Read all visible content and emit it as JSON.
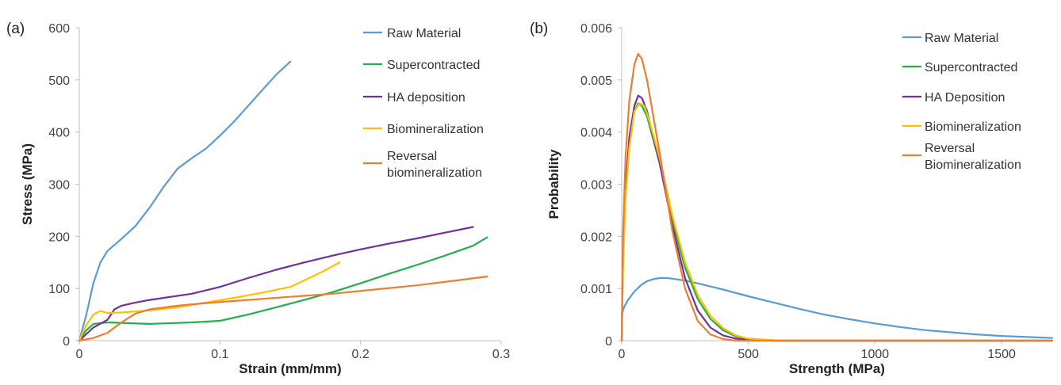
{
  "chart_data": [
    {
      "type": "line",
      "panel_label": "(a)",
      "xlabel": "Strain (mm/mm)",
      "ylabel": "Stress (MPa)",
      "xlim": [
        0,
        0.3
      ],
      "ylim": [
        0,
        600
      ],
      "xticks": [
        "0",
        "0.1",
        "0.2",
        "0.3"
      ],
      "yticks": [
        "0",
        "100",
        "200",
        "300",
        "400",
        "500",
        "600"
      ],
      "grid": false,
      "legend_position": "right",
      "series": [
        {
          "name": "Raw Material",
          "color": "#5b9bd5",
          "points": [
            [
              0,
              0
            ],
            [
              0.005,
              50
            ],
            [
              0.01,
              110
            ],
            [
              0.015,
              150
            ],
            [
              0.02,
              172
            ],
            [
              0.03,
              195
            ],
            [
              0.04,
              220
            ],
            [
              0.05,
              255
            ],
            [
              0.06,
              295
            ],
            [
              0.07,
              330
            ],
            [
              0.08,
              350
            ],
            [
              0.09,
              368
            ],
            [
              0.1,
              393
            ],
            [
              0.11,
              420
            ],
            [
              0.12,
              450
            ],
            [
              0.13,
              480
            ],
            [
              0.14,
              510
            ],
            [
              0.15,
              535
            ]
          ]
        },
        {
          "name": "Supercontracted",
          "color": "#22b04b",
          "points": [
            [
              0,
              0
            ],
            [
              0.005,
              20
            ],
            [
              0.01,
              32
            ],
            [
              0.02,
              35
            ],
            [
              0.05,
              32
            ],
            [
              0.08,
              35
            ],
            [
              0.1,
              38
            ],
            [
              0.12,
              50
            ],
            [
              0.14,
              64
            ],
            [
              0.16,
              78
            ],
            [
              0.18,
              93
            ],
            [
              0.2,
              110
            ],
            [
              0.22,
              128
            ],
            [
              0.24,
              145
            ],
            [
              0.26,
              163
            ],
            [
              0.28,
              182
            ],
            [
              0.29,
              198
            ]
          ]
        },
        {
          "name": "HA deposition",
          "color": "#7030a0",
          "points": [
            [
              0,
              0
            ],
            [
              0.01,
              25
            ],
            [
              0.02,
              40
            ],
            [
              0.025,
              60
            ],
            [
              0.03,
              67
            ],
            [
              0.04,
              73
            ],
            [
              0.05,
              78
            ],
            [
              0.08,
              90
            ],
            [
              0.1,
              103
            ],
            [
              0.12,
              120
            ],
            [
              0.14,
              136
            ],
            [
              0.16,
              150
            ],
            [
              0.18,
              163
            ],
            [
              0.2,
              175
            ],
            [
              0.22,
              186
            ],
            [
              0.24,
              196
            ],
            [
              0.26,
              207
            ],
            [
              0.28,
              218
            ]
          ]
        },
        {
          "name": "Biomineralization",
          "color": "#ffc000",
          "points": [
            [
              0,
              0
            ],
            [
              0.005,
              30
            ],
            [
              0.01,
              50
            ],
            [
              0.015,
              57
            ],
            [
              0.02,
              53
            ],
            [
              0.03,
              54
            ],
            [
              0.05,
              58
            ],
            [
              0.07,
              64
            ],
            [
              0.09,
              73
            ],
            [
              0.11,
              82
            ],
            [
              0.13,
              92
            ],
            [
              0.15,
              103
            ],
            [
              0.165,
              122
            ],
            [
              0.175,
              135
            ],
            [
              0.185,
              150
            ]
          ]
        },
        {
          "name": "Reversal biomineralization",
          "color": "#ed7d31",
          "points": [
            [
              0,
              0
            ],
            [
              0.01,
              5
            ],
            [
              0.02,
              15
            ],
            [
              0.03,
              35
            ],
            [
              0.04,
              52
            ],
            [
              0.05,
              60
            ],
            [
              0.07,
              67
            ],
            [
              0.09,
              72
            ],
            [
              0.12,
              78
            ],
            [
              0.15,
              84
            ],
            [
              0.18,
              90
            ],
            [
              0.21,
              98
            ],
            [
              0.24,
              106
            ],
            [
              0.27,
              116
            ],
            [
              0.29,
              123
            ]
          ]
        }
      ]
    },
    {
      "type": "line",
      "panel_label": "(b)",
      "xlabel": "Strength (MPa)",
      "ylabel": "Probability",
      "xlim": [
        0,
        1700
      ],
      "ylim": [
        0,
        0.006
      ],
      "xticks": [
        "0",
        "500",
        "1000",
        "1500"
      ],
      "yticks": [
        "0",
        "0.001",
        "0.002",
        "0.003",
        "0.004",
        "0.005",
        "0.006"
      ],
      "grid": false,
      "legend_position": "right",
      "series": [
        {
          "name": "Raw Material",
          "color": "#5b9bd5",
          "points": [
            [
              0,
              0.0005
            ],
            [
              10,
              0.00065
            ],
            [
              25,
              0.00078
            ],
            [
              50,
              0.00094
            ],
            [
              75,
              0.00106
            ],
            [
              100,
              0.00114
            ],
            [
              125,
              0.00118
            ],
            [
              150,
              0.0012
            ],
            [
              175,
              0.0012
            ],
            [
              200,
              0.00119
            ],
            [
              250,
              0.00115
            ],
            [
              300,
              0.0011
            ],
            [
              400,
              0.00098
            ],
            [
              500,
              0.00085
            ],
            [
              600,
              0.00073
            ],
            [
              700,
              0.00061
            ],
            [
              800,
              0.0005
            ],
            [
              900,
              0.00041
            ],
            [
              1000,
              0.00033
            ],
            [
              1100,
              0.00026
            ],
            [
              1200,
              0.0002
            ],
            [
              1300,
              0.00016
            ],
            [
              1400,
              0.00012
            ],
            [
              1500,
              9e-05
            ],
            [
              1600,
              7e-05
            ],
            [
              1700,
              5e-05
            ]
          ]
        },
        {
          "name": "Supercontracted",
          "color": "#22b04b",
          "points": [
            [
              0,
              0
            ],
            [
              5,
              0.0015
            ],
            [
              15,
              0.0028
            ],
            [
              30,
              0.0038
            ],
            [
              50,
              0.0044
            ],
            [
              65,
              0.00455
            ],
            [
              80,
              0.0045
            ],
            [
              100,
              0.0043
            ],
            [
              150,
              0.0034
            ],
            [
              200,
              0.0023
            ],
            [
              250,
              0.0014
            ],
            [
              300,
              0.0008
            ],
            [
              350,
              0.00042
            ],
            [
              400,
              0.0002
            ],
            [
              450,
              8e-05
            ],
            [
              500,
              3e-05
            ],
            [
              600,
              0
            ],
            [
              1700,
              0
            ]
          ]
        },
        {
          "name": "HA Deposition",
          "color": "#7030a0",
          "points": [
            [
              0,
              0
            ],
            [
              5,
              0.0016
            ],
            [
              15,
              0.0029
            ],
            [
              30,
              0.0039
            ],
            [
              50,
              0.0045
            ],
            [
              65,
              0.0047
            ],
            [
              80,
              0.00465
            ],
            [
              100,
              0.0044
            ],
            [
              150,
              0.0034
            ],
            [
              200,
              0.0022
            ],
            [
              250,
              0.0012
            ],
            [
              300,
              0.00058
            ],
            [
              350,
              0.00025
            ],
            [
              400,
              0.0001
            ],
            [
              450,
              4e-05
            ],
            [
              500,
              1e-05
            ],
            [
              600,
              0
            ],
            [
              1700,
              0
            ]
          ]
        },
        {
          "name": "Biomineralization",
          "color": "#ffc000",
          "points": [
            [
              0,
              0
            ],
            [
              5,
              0.0014
            ],
            [
              15,
              0.0027
            ],
            [
              30,
              0.0037
            ],
            [
              50,
              0.0044
            ],
            [
              70,
              0.00455
            ],
            [
              90,
              0.0045
            ],
            [
              110,
              0.0042
            ],
            [
              150,
              0.0035
            ],
            [
              200,
              0.0024
            ],
            [
              250,
              0.0015
            ],
            [
              300,
              0.00088
            ],
            [
              350,
              0.00048
            ],
            [
              400,
              0.00024
            ],
            [
              450,
              0.0001
            ],
            [
              500,
              4e-05
            ],
            [
              600,
              1e-05
            ],
            [
              700,
              0
            ],
            [
              1700,
              0
            ]
          ]
        },
        {
          "name": "Reversal Biomineralization",
          "color": "#ed7d31",
          "points": [
            [
              0,
              0
            ],
            [
              5,
              0.002
            ],
            [
              15,
              0.0035
            ],
            [
              30,
              0.0046
            ],
            [
              50,
              0.0053
            ],
            [
              65,
              0.0055
            ],
            [
              80,
              0.0054
            ],
            [
              100,
              0.005
            ],
            [
              150,
              0.0036
            ],
            [
              200,
              0.0021
            ],
            [
              250,
              0.001
            ],
            [
              300,
              0.00038
            ],
            [
              350,
              0.00012
            ],
            [
              400,
              3e-05
            ],
            [
              450,
              0
            ],
            [
              1700,
              0
            ]
          ]
        }
      ]
    }
  ]
}
